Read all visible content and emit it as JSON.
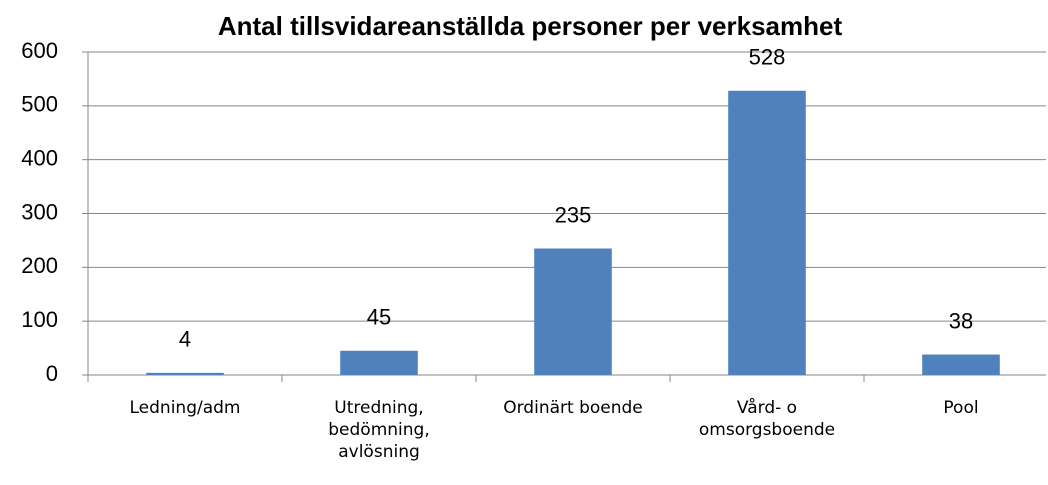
{
  "chart_data": {
    "type": "bar",
    "title": "Antal tillsvidareanställda personer per verksamhet",
    "categories": [
      "Ledning/adm",
      "Utredning, bedömning, avlösning",
      "Ordinärt boende",
      "Vård- o omsorgsboende",
      "Pool"
    ],
    "values": [
      4,
      45,
      235,
      528,
      38
    ],
    "color": "#4f81bd",
    "ylim": [
      0,
      600
    ],
    "yticks": [
      0,
      100,
      200,
      300,
      400,
      500,
      600
    ],
    "grid": true
  }
}
